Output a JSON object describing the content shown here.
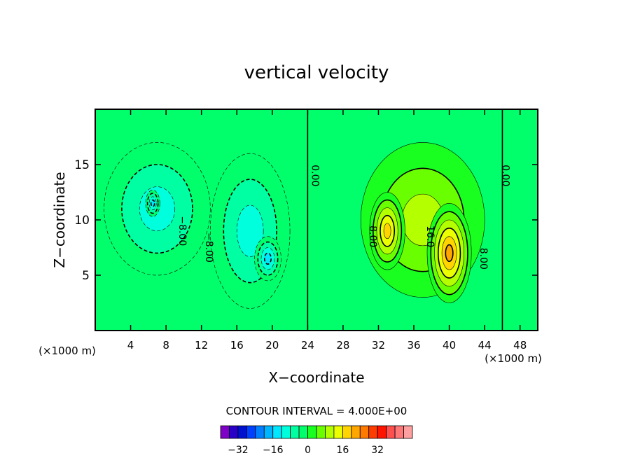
{
  "chart_data": {
    "type": "heatmap",
    "title": "vertical velocity",
    "xlabel": "X−coordinate",
    "ylabel": "Z−coordinate",
    "x_unit_left": "(×1000 m)",
    "x_unit_right": "(×1000 m)",
    "xlim": [
      0,
      50
    ],
    "ylim": [
      0,
      20
    ],
    "x_ticks": [
      4,
      8,
      12,
      16,
      20,
      24,
      28,
      32,
      36,
      40,
      44,
      48
    ],
    "y_ticks": [
      5,
      10,
      15
    ],
    "contour_interval_text": "CONTOUR INTERVAL = 4.000E+00",
    "contour_interval": 4,
    "contour_labels": [
      {
        "text": "0.00",
        "x": 24.5,
        "y": 14
      },
      {
        "text": "0.00",
        "x": 46,
        "y": 14
      },
      {
        "text": "8.00",
        "x": 31,
        "y": 8.5
      },
      {
        "text": "8.00",
        "x": 43.5,
        "y": 6.5
      },
      {
        "text": "16.0",
        "x": 37.5,
        "y": 8.5
      },
      {
        "text": "−8.00",
        "x": 9.5,
        "y": 9
      },
      {
        "text": "−8.00",
        "x": 12.5,
        "y": 7.5
      }
    ],
    "features": [
      {
        "kind": "downdraft",
        "cx": 7,
        "cy": 11,
        "rx": 6,
        "ry": 6,
        "peak": -12
      },
      {
        "kind": "downdraft",
        "cx": 17.5,
        "cy": 9,
        "rx": 4.5,
        "ry": 7,
        "peak": -12
      },
      {
        "kind": "downdraft",
        "cx": 19.5,
        "cy": 6.5,
        "rx": 1.5,
        "ry": 2,
        "peak": -16
      },
      {
        "kind": "downdraft",
        "cx": 6.5,
        "cy": 11.5,
        "rx": 0.8,
        "ry": 1.2,
        "peak": -16
      },
      {
        "kind": "updraft",
        "cx": 37,
        "cy": 10,
        "rx": 7,
        "ry": 7,
        "peak": 12
      },
      {
        "kind": "updraft",
        "cx": 33,
        "cy": 9,
        "rx": 2,
        "ry": 3.5,
        "peak": 20
      },
      {
        "kind": "updraft",
        "cx": 40,
        "cy": 7,
        "rx": 2.5,
        "ry": 4.5,
        "peak": 24
      }
    ],
    "colorbar": {
      "tick_labels": [
        "−32",
        "−16",
        "0",
        "16",
        "32"
      ],
      "tick_values": [
        -32,
        -16,
        0,
        16,
        32
      ],
      "colors": [
        "#7f00c6",
        "#2a00c8",
        "#0012d0",
        "#0040ff",
        "#0080ff",
        "#00b5ff",
        "#00e6ff",
        "#00ffdc",
        "#00ffa2",
        "#00ff6a",
        "#18ff20",
        "#6aff00",
        "#b4ff00",
        "#ecff00",
        "#ffd400",
        "#ffa600",
        "#ff7a00",
        "#ff3c00",
        "#ff1400",
        "#ff5050",
        "#ff7878",
        "#ffa0a0"
      ]
    }
  }
}
